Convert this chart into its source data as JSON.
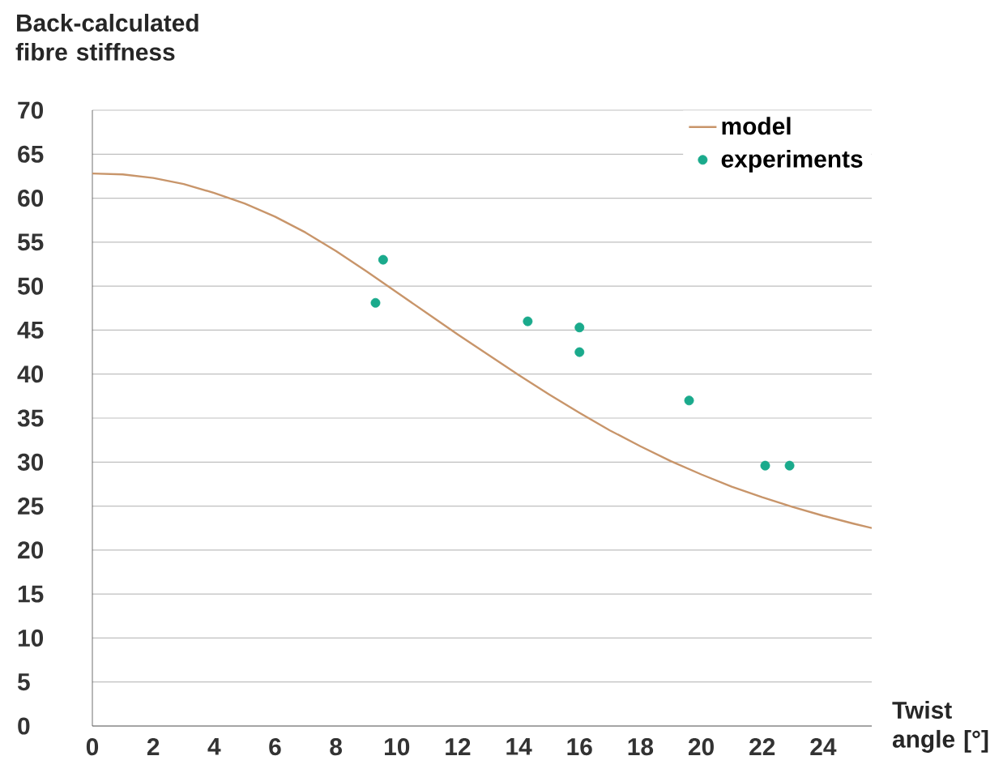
{
  "chart_data": {
    "type": "line",
    "ylabel": "Back-calculated fibre stiffness",
    "xlabel": "Twist angle [°]",
    "xlim": [
      0,
      25.6
    ],
    "ylim": [
      0,
      70
    ],
    "xticks": [
      0,
      2,
      4,
      6,
      8,
      10,
      12,
      14,
      16,
      18,
      20,
      22,
      24
    ],
    "yticks": [
      0,
      5,
      10,
      15,
      20,
      25,
      30,
      35,
      40,
      45,
      50,
      55,
      60,
      65,
      70
    ],
    "grid": "y",
    "legend": "top right",
    "series": [
      {
        "name": "model",
        "color": "#c8956a",
        "x": [
          0,
          1,
          2,
          3,
          4,
          5,
          6,
          7,
          8,
          9,
          10,
          11,
          12,
          13,
          14,
          15,
          16,
          17,
          18,
          19,
          20,
          21,
          22,
          23,
          24,
          25,
          25.6
        ],
        "values": [
          62.8,
          62.7,
          62.3,
          61.6,
          60.6,
          59.4,
          57.9,
          56.1,
          54.0,
          51.7,
          49.3,
          46.9,
          44.5,
          42.2,
          39.9,
          37.7,
          35.6,
          33.6,
          31.8,
          30.1,
          28.6,
          27.2,
          26.0,
          24.9,
          23.9,
          23.0,
          22.5
        ]
      },
      {
        "name": "experiments",
        "type": "scatter",
        "marker": "circle",
        "color": "#1aaa8c",
        "x": [
          9.3,
          9.55,
          14.3,
          16.0,
          16.0,
          19.6,
          22.1,
          22.9
        ],
        "values": [
          48.1,
          53.0,
          46.0,
          45.3,
          42.5,
          37.0,
          29.6,
          29.6
        ]
      }
    ]
  }
}
